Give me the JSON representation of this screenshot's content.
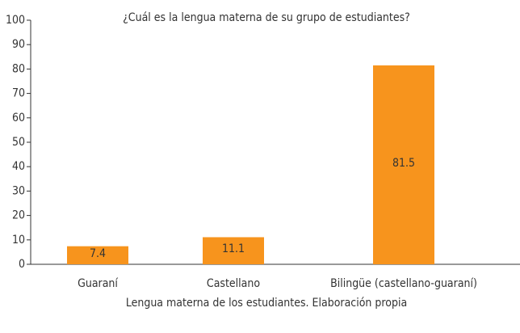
{
  "chart_data": {
    "type": "bar",
    "title": "¿Cuál es la lengua materna de su grupo de estudiantes?",
    "x_label": "Lengua materna de los estudiantes. Elaboración propia",
    "categories": [
      "Guaraní",
      "Castellano",
      "Bilingüe (castellano-guaraní)"
    ],
    "values": [
      7.4,
      11.1,
      81.5
    ],
    "color": "#f7941d",
    "ylim": [
      0,
      100
    ],
    "yticks": [
      0,
      10,
      20,
      30,
      40,
      50,
      60,
      70,
      80,
      90,
      100
    ],
    "grid": false
  }
}
